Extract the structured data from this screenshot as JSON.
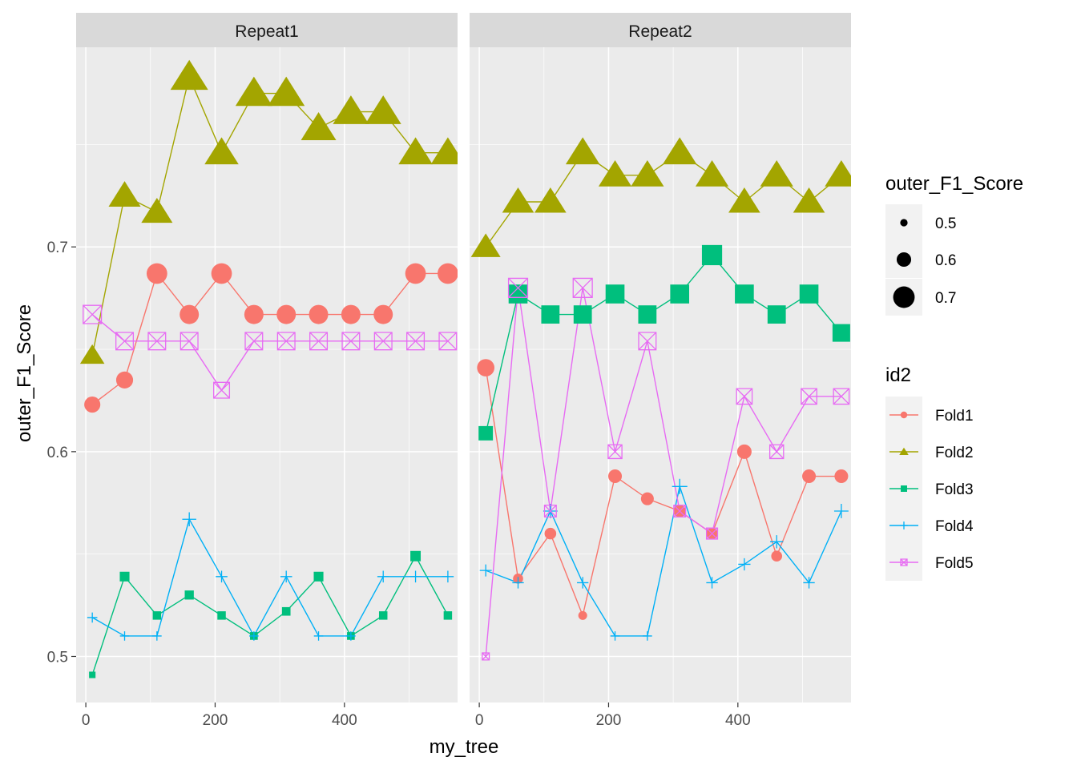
{
  "chart_data": {
    "type": "line",
    "xlabel": "my_tree",
    "ylabel": "outer_F1_Score",
    "xlim": [
      -15,
      575
    ],
    "ylim": [
      0.4775,
      0.7975
    ],
    "x_ticks": [
      0,
      200,
      400
    ],
    "x_tick_labels": [
      "0",
      "200",
      "400"
    ],
    "y_ticks": [
      0.5,
      0.6,
      0.7
    ],
    "y_tick_labels": [
      "0.5",
      "0.6",
      "0.7"
    ],
    "grid": true,
    "legend_position": "right",
    "size_legend": {
      "title": "outer_F1_Score",
      "labels": [
        "0.5",
        "0.6",
        "0.7"
      ],
      "values": [
        0.5,
        0.6,
        0.7
      ]
    },
    "color_legend": {
      "title": "id2",
      "labels": [
        "Fold1",
        "Fold2",
        "Fold3",
        "Fold4",
        "Fold5"
      ]
    },
    "colors": {
      "Fold1": "#F8766D",
      "Fold2": "#A3A500",
      "Fold3": "#00BF7D",
      "Fold4": "#00B0F6",
      "Fold5": "#E76BF3"
    },
    "shapes": {
      "Fold1": "circle",
      "Fold2": "triangle",
      "Fold3": "square",
      "Fold4": "plus",
      "Fold5": "square-cross"
    },
    "x": [
      10,
      60,
      110,
      160,
      210,
      260,
      310,
      360,
      410,
      460,
      510,
      560
    ],
    "panels": [
      {
        "strip": "Repeat1",
        "series": [
          {
            "name": "Fold1",
            "values": [
              0.623,
              0.635,
              0.687,
              0.667,
              0.687,
              0.667,
              0.667,
              0.667,
              0.667,
              0.667,
              0.687,
              0.687
            ]
          },
          {
            "name": "Fold2",
            "values": [
              0.647,
              0.725,
              0.717,
              0.783,
              0.746,
              0.775,
              0.775,
              0.758,
              0.766,
              0.766,
              0.746,
              0.746
            ]
          },
          {
            "name": "Fold3",
            "values": [
              0.491,
              0.539,
              0.52,
              0.53,
              0.52,
              0.51,
              0.522,
              0.539,
              0.51,
              0.52,
              0.549,
              0.52
            ]
          },
          {
            "name": "Fold4",
            "values": [
              0.519,
              0.51,
              0.51,
              0.567,
              0.539,
              0.51,
              0.539,
              0.51,
              0.51,
              0.539,
              0.539,
              0.539
            ]
          },
          {
            "name": "Fold5",
            "values": [
              0.667,
              0.654,
              0.654,
              0.654,
              0.63,
              0.654,
              0.654,
              0.654,
              0.654,
              0.654,
              0.654,
              0.654
            ]
          }
        ]
      },
      {
        "strip": "Repeat2",
        "series": [
          {
            "name": "Fold1",
            "values": [
              0.641,
              0.538,
              0.56,
              0.52,
              0.588,
              0.577,
              0.571,
              0.56,
              0.6,
              0.549,
              0.588,
              0.588
            ]
          },
          {
            "name": "Fold2",
            "values": [
              0.7,
              0.722,
              0.722,
              0.746,
              0.735,
              0.735,
              0.746,
              0.735,
              0.722,
              0.735,
              0.722,
              0.735
            ]
          },
          {
            "name": "Fold3",
            "values": [
              0.609,
              0.677,
              0.667,
              0.667,
              0.677,
              0.667,
              0.677,
              0.696,
              0.677,
              0.667,
              0.677,
              0.658
            ]
          },
          {
            "name": "Fold4",
            "values": [
              0.542,
              0.536,
              0.571,
              0.536,
              0.51,
              0.51,
              0.583,
              0.536,
              0.545,
              0.556,
              0.536,
              0.571
            ]
          },
          {
            "name": "Fold5",
            "values": [
              0.5,
              0.68,
              0.571,
              0.68,
              0.6,
              0.654,
              0.571,
              0.56,
              0.627,
              0.6,
              0.627,
              0.627
            ]
          }
        ]
      }
    ]
  }
}
